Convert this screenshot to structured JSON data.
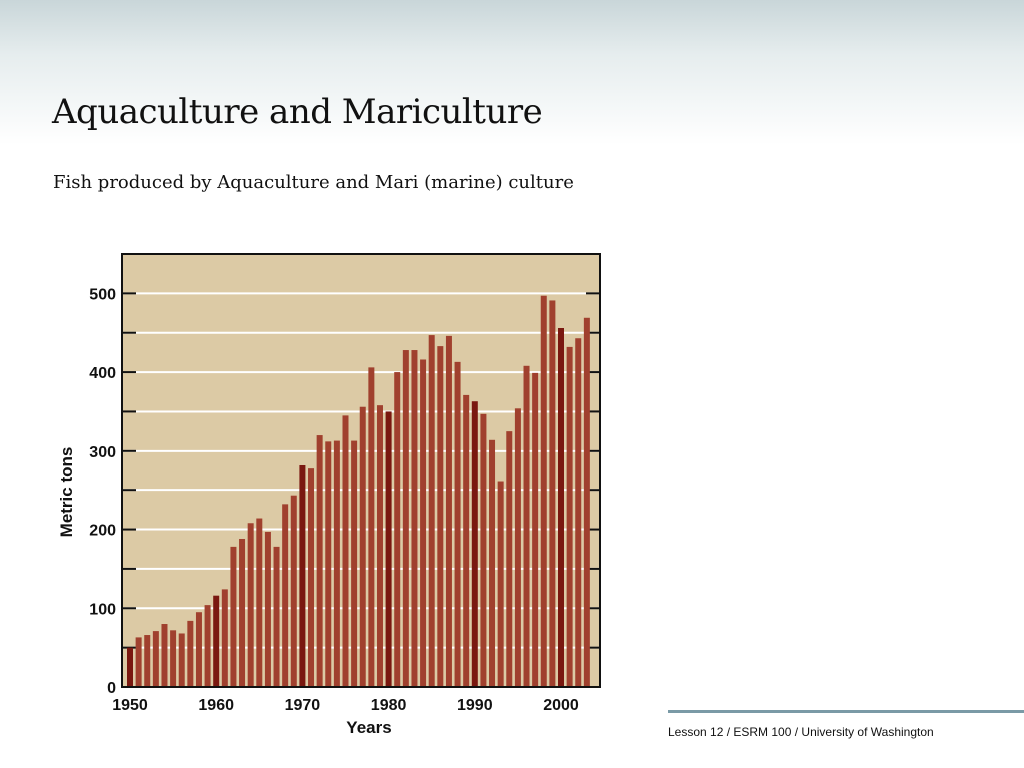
{
  "slide": {
    "title": "Aquaculture and Mariculture",
    "subtitle": "Fish produced by Aquaculture and Mari (marine) culture",
    "footer": "Lesson 12  / ESRM 100 / University of Washington"
  },
  "colors": {
    "plot_background": "#dccaa5",
    "bar": "#a0402e",
    "bar_highlight": "#7a1810",
    "gridline": "#ffffff",
    "footer_rule": "#7a9aa6"
  },
  "chart_data": {
    "type": "bar",
    "title": "",
    "xlabel": "Years",
    "ylabel": "Metric tons",
    "ylim": [
      0,
      550
    ],
    "xlim": [
      1950,
      2003
    ],
    "yticks": [
      0,
      100,
      200,
      300,
      400,
      500
    ],
    "xticks": [
      1950,
      1960,
      1970,
      1980,
      1990,
      2000
    ],
    "grid": true,
    "x": [
      1950,
      1951,
      1952,
      1953,
      1954,
      1955,
      1956,
      1957,
      1958,
      1959,
      1960,
      1961,
      1962,
      1963,
      1964,
      1965,
      1966,
      1967,
      1968,
      1969,
      1970,
      1971,
      1972,
      1973,
      1974,
      1975,
      1976,
      1977,
      1978,
      1979,
      1980,
      1981,
      1982,
      1983,
      1984,
      1985,
      1986,
      1987,
      1988,
      1989,
      1990,
      1991,
      1992,
      1993,
      1994,
      1995,
      1996,
      1997,
      1998,
      1999,
      2000,
      2001,
      2002,
      2003
    ],
    "values": [
      50,
      63,
      66,
      71,
      80,
      72,
      68,
      84,
      95,
      104,
      116,
      124,
      178,
      188,
      208,
      214,
      197,
      178,
      232,
      243,
      282,
      278,
      320,
      312,
      313,
      345,
      313,
      356,
      406,
      358,
      350,
      400,
      428,
      428,
      416,
      447,
      433,
      446,
      413,
      371,
      363,
      347,
      314,
      261,
      325,
      354,
      408,
      399,
      497,
      491,
      456,
      432,
      443,
      469
    ]
  }
}
